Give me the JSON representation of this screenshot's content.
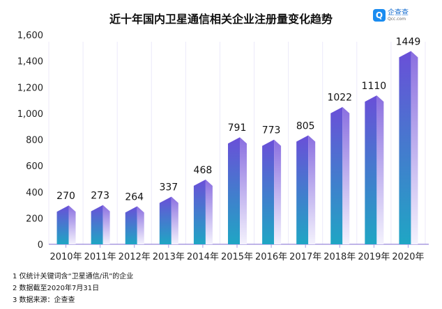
{
  "title": "近十年国内卫星通信相关企业注册量变化趋势",
  "logo": {
    "name": "企查查",
    "domain": "Qcc.com"
  },
  "chart_data": {
    "type": "bar",
    "title": "近十年国内卫星通信相关企业注册量变化趋势",
    "categories": [
      "2010年",
      "2011年",
      "2012年",
      "2013年",
      "2014年",
      "2015年",
      "2016年",
      "2017年",
      "2018年",
      "2019年",
      "2020年"
    ],
    "values": [
      270,
      273,
      264,
      337,
      468,
      791,
      773,
      805,
      1022,
      1110,
      1449
    ],
    "data_labels": [
      "270",
      "273",
      "264",
      "337",
      "468",
      "791",
      "773",
      "805",
      "1022",
      "1110",
      "1449"
    ],
    "ylim": [
      0,
      1600
    ],
    "yticks": [
      0,
      200,
      400,
      600,
      800,
      1000,
      1200,
      1400,
      1600
    ],
    "ytick_labels": [
      "0",
      "200",
      "400",
      "600",
      "800",
      "1,000",
      "1,200",
      "1,400",
      "1,600"
    ],
    "grid": false,
    "colors": {
      "top": "#6a4fd8",
      "bottom": "#1fa6c4",
      "side": "#b9a8ef",
      "axis": "#a99ae0"
    }
  },
  "notes": [
    "1 仅统计关键词含“卫星通信/讯”的企业",
    "2 数据截至2020年7月31日",
    "3 数据来源：企查查"
  ]
}
